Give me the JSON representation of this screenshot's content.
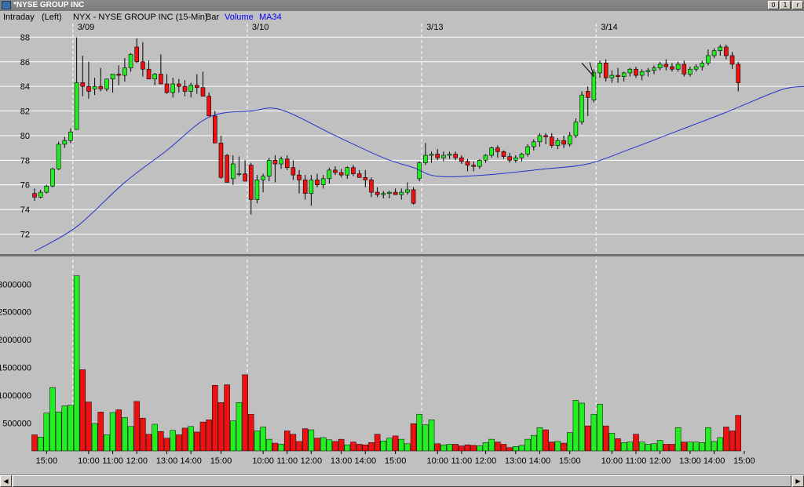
{
  "window": {
    "title": "*NYSE GROUP INC",
    "min_glyph": "0",
    "max_glyph": "1",
    "close_glyph": "r"
  },
  "infobar": {
    "mode": "Intraday",
    "axis_side": "(Left)",
    "symbol_desc": "NYX - NYSE GROUP INC (15-Min)",
    "chart_style": "Bar",
    "volume_label": "Volume",
    "ma_label": "MA34"
  },
  "colors": {
    "up": "#22ee22",
    "down": "#ee1111",
    "ma": "#2233cc",
    "accent": "#0000ff",
    "grid": "#ffffff",
    "divider": "#707070"
  },
  "chart_data": {
    "type": "candlestick",
    "price_axis": {
      "ylim": [
        70.5,
        88.6
      ],
      "ticks": [
        72,
        74,
        76,
        78,
        80,
        82,
        84,
        86,
        88
      ]
    },
    "volume_axis": {
      "ylim": [
        0,
        3300000
      ],
      "ticks": [
        500000,
        1000000,
        1500000,
        2000000,
        2500000,
        3000000
      ]
    },
    "date_labels": [
      {
        "label": "3/09",
        "bar": 7
      },
      {
        "label": "3/10",
        "bar": 36
      },
      {
        "label": "3/13",
        "bar": 65
      },
      {
        "label": "3/14",
        "bar": 94
      }
    ],
    "time_labels": [
      {
        "label": "15:00",
        "bar": 2
      },
      {
        "label": "10:00",
        "bar": 9
      },
      {
        "label": "11:00",
        "bar": 13
      },
      {
        "label": "12:00",
        "bar": 17
      },
      {
        "label": "13:00",
        "bar": 22
      },
      {
        "label": "14:00",
        "bar": 26
      },
      {
        "label": "15:00",
        "bar": 31
      },
      {
        "label": "10:00",
        "bar": 38
      },
      {
        "label": "11:00",
        "bar": 42
      },
      {
        "label": "12:00",
        "bar": 46
      },
      {
        "label": "13:00",
        "bar": 51
      },
      {
        "label": "14:00",
        "bar": 55
      },
      {
        "label": "15:00",
        "bar": 60
      },
      {
        "label": "10:00",
        "bar": 67
      },
      {
        "label": "11:00",
        "bar": 71
      },
      {
        "label": "12:00",
        "bar": 75
      },
      {
        "label": "13:00",
        "bar": 80
      },
      {
        "label": "14:00",
        "bar": 84
      },
      {
        "label": "15:00",
        "bar": 89
      },
      {
        "label": "10:00",
        "bar": 96
      },
      {
        "label": "11:00",
        "bar": 100
      },
      {
        "label": "12:00",
        "bar": 104
      },
      {
        "label": "13:00",
        "bar": 109
      },
      {
        "label": "14:00",
        "bar": 113
      },
      {
        "label": "15:00",
        "bar": 118
      }
    ],
    "ohlcv": [
      [
        75.3,
        75.7,
        74.7,
        75.0,
        290000
      ],
      [
        75.0,
        75.6,
        74.9,
        75.4,
        250000
      ],
      [
        75.4,
        76.0,
        75.3,
        75.9,
        680000
      ],
      [
        75.9,
        77.4,
        75.8,
        77.3,
        1140000
      ],
      [
        77.3,
        79.5,
        77.2,
        79.3,
        700000
      ],
      [
        79.3,
        79.9,
        79.0,
        79.6,
        810000
      ],
      [
        79.6,
        80.6,
        79.4,
        80.3,
        820000
      ],
      [
        80.5,
        88.0,
        82.6,
        84.3,
        3150000
      ],
      [
        84.3,
        86.5,
        83.2,
        84.0,
        1460000
      ],
      [
        84.0,
        86.0,
        83.0,
        83.6,
        880000
      ],
      [
        83.8,
        84.7,
        83.3,
        84.0,
        490000
      ],
      [
        84.0,
        85.5,
        83.6,
        83.8,
        700000
      ],
      [
        83.8,
        84.5,
        83.6,
        84.6,
        290000
      ],
      [
        84.6,
        85.0,
        83.5,
        85.0,
        690000
      ],
      [
        85.0,
        85.7,
        84.1,
        84.9,
        740000
      ],
      [
        84.9,
        86.3,
        84.4,
        85.5,
        600000
      ],
      [
        85.5,
        86.7,
        85.2,
        86.6,
        440000
      ],
      [
        87.2,
        87.9,
        85.9,
        86.0,
        890000
      ],
      [
        86.0,
        87.6,
        84.8,
        85.4,
        590000
      ],
      [
        85.4,
        86.1,
        84.7,
        84.6,
        300000
      ],
      [
        84.6,
        85.1,
        84.1,
        85.0,
        480000
      ],
      [
        85.0,
        86.6,
        84.6,
        84.2,
        350000
      ],
      [
        84.2,
        85.0,
        83.4,
        83.5,
        230000
      ],
      [
        83.5,
        84.7,
        83.1,
        84.2,
        370000
      ],
      [
        84.2,
        84.6,
        83.5,
        84.0,
        290000
      ],
      [
        84.0,
        84.5,
        83.2,
        83.6,
        410000
      ],
      [
        83.6,
        84.3,
        83.1,
        84.1,
        440000
      ],
      [
        84.1,
        85.0,
        83.4,
        83.9,
        340000
      ],
      [
        83.9,
        85.2,
        83.2,
        83.2,
        520000
      ],
      [
        83.2,
        83.5,
        82.6,
        81.6,
        560000
      ],
      [
        81.6,
        82.0,
        79.5,
        79.4,
        1180000
      ],
      [
        79.4,
        80.0,
        76.5,
        76.6,
        870000
      ],
      [
        78.4,
        78.5,
        76.3,
        76.2,
        1190000
      ],
      [
        76.5,
        78.4,
        76.0,
        77.7,
        540000
      ],
      [
        76.9,
        78.3,
        76.7,
        76.9,
        870000
      ],
      [
        76.9,
        78.0,
        76.4,
        76.3,
        1370000
      ],
      [
        77.6,
        77.8,
        73.6,
        74.8,
        660000
      ],
      [
        74.8,
        76.8,
        74.5,
        76.4,
        360000
      ],
      [
        76.4,
        76.9,
        75.4,
        76.7,
        430000
      ],
      [
        76.7,
        78.2,
        76.3,
        78.0,
        210000
      ],
      [
        78.0,
        78.4,
        76.2,
        77.7,
        140000
      ],
      [
        77.7,
        78.3,
        77.3,
        78.1,
        120000
      ],
      [
        78.1,
        78.4,
        77.2,
        77.4,
        360000
      ],
      [
        77.4,
        78.0,
        76.4,
        76.8,
        300000
      ],
      [
        76.8,
        77.2,
        75.3,
        76.4,
        170000
      ],
      [
        76.4,
        76.8,
        74.8,
        75.3,
        400000
      ],
      [
        75.3,
        76.8,
        74.3,
        76.4,
        380000
      ],
      [
        76.4,
        76.9,
        75.8,
        76.0,
        230000
      ],
      [
        76.0,
        76.8,
        75.7,
        76.5,
        240000
      ],
      [
        76.5,
        77.4,
        76.1,
        77.2,
        200000
      ],
      [
        77.2,
        77.5,
        76.8,
        77.0,
        170000
      ],
      [
        77.0,
        77.3,
        76.6,
        76.8,
        210000
      ],
      [
        76.8,
        77.5,
        76.5,
        77.4,
        110000
      ],
      [
        77.4,
        77.6,
        76.7,
        76.9,
        160000
      ],
      [
        76.9,
        77.2,
        76.6,
        76.6,
        120000
      ],
      [
        76.6,
        77.2,
        75.8,
        76.4,
        110000
      ],
      [
        76.4,
        76.6,
        75.0,
        75.4,
        150000
      ],
      [
        75.4,
        75.8,
        75.0,
        75.2,
        300000
      ],
      [
        75.2,
        75.5,
        74.9,
        75.3,
        180000
      ],
      [
        75.3,
        75.5,
        74.9,
        75.4,
        230000
      ],
      [
        75.4,
        75.7,
        75.2,
        75.2,
        270000
      ],
      [
        75.2,
        75.7,
        74.8,
        75.4,
        210000
      ],
      [
        75.4,
        76.2,
        75.2,
        75.6,
        130000
      ],
      [
        75.6,
        75.8,
        74.4,
        74.5,
        490000
      ],
      [
        76.5,
        77.9,
        76.3,
        77.8,
        660000
      ],
      [
        77.8,
        79.4,
        77.6,
        78.4,
        470000
      ],
      [
        78.4,
        78.7,
        77.8,
        78.5,
        560000
      ],
      [
        78.5,
        78.9,
        78.0,
        78.2,
        130000
      ],
      [
        78.2,
        78.7,
        77.9,
        78.4,
        110000
      ],
      [
        78.4,
        78.7,
        78.1,
        78.5,
        120000
      ],
      [
        78.5,
        78.7,
        78.0,
        78.2,
        120000
      ],
      [
        78.2,
        78.4,
        77.7,
        77.9,
        90000
      ],
      [
        77.9,
        78.1,
        77.1,
        77.6,
        110000
      ],
      [
        77.6,
        77.9,
        77.1,
        77.5,
        100000
      ],
      [
        77.5,
        78.1,
        77.3,
        78.0,
        90000
      ],
      [
        78.0,
        78.5,
        77.8,
        78.4,
        150000
      ],
      [
        78.4,
        79.1,
        78.2,
        79.0,
        210000
      ],
      [
        79.0,
        79.2,
        78.2,
        78.7,
        160000
      ],
      [
        78.7,
        78.8,
        78.1,
        78.3,
        120000
      ],
      [
        78.3,
        78.6,
        77.8,
        78.0,
        60000
      ],
      [
        78.0,
        78.4,
        77.8,
        78.2,
        80000
      ],
      [
        78.2,
        78.6,
        77.9,
        78.5,
        100000
      ],
      [
        78.5,
        79.3,
        78.3,
        79.1,
        210000
      ],
      [
        79.1,
        79.7,
        78.8,
        79.5,
        280000
      ],
      [
        79.5,
        80.2,
        79.1,
        80.0,
        420000
      ],
      [
        80.0,
        80.2,
        79.3,
        79.9,
        380000
      ],
      [
        79.9,
        80.2,
        79.0,
        79.2,
        160000
      ],
      [
        79.2,
        79.8,
        78.9,
        79.6,
        170000
      ],
      [
        79.6,
        80.0,
        79.0,
        79.3,
        140000
      ],
      [
        79.3,
        80.3,
        79.1,
        80.0,
        330000
      ],
      [
        80.0,
        81.4,
        79.8,
        81.1,
        910000
      ],
      [
        81.1,
        83.6,
        80.9,
        83.3,
        860000
      ],
      [
        83.6,
        84.0,
        81.6,
        83.1,
        450000
      ],
      [
        82.9,
        85.4,
        82.7,
        85.1,
        660000
      ],
      [
        85.1,
        86.1,
        84.7,
        85.9,
        840000
      ],
      [
        85.9,
        86.2,
        84.4,
        84.7,
        450000
      ],
      [
        84.7,
        85.3,
        84.3,
        84.9,
        320000
      ],
      [
        84.9,
        85.5,
        84.3,
        84.8,
        220000
      ],
      [
        84.8,
        85.2,
        84.4,
        85.1,
        150000
      ],
      [
        85.1,
        85.5,
        84.8,
        85.4,
        160000
      ],
      [
        85.4,
        85.6,
        84.7,
        84.9,
        300000
      ],
      [
        84.9,
        85.4,
        84.5,
        85.2,
        160000
      ],
      [
        85.2,
        85.5,
        84.8,
        85.3,
        120000
      ],
      [
        85.3,
        85.7,
        85.0,
        85.5,
        130000
      ],
      [
        85.5,
        86.0,
        85.3,
        85.8,
        190000
      ],
      [
        85.8,
        86.2,
        85.3,
        85.6,
        120000
      ],
      [
        85.6,
        85.9,
        85.2,
        85.4,
        120000
      ],
      [
        85.4,
        86.0,
        85.2,
        85.8,
        420000
      ],
      [
        85.8,
        86.1,
        84.8,
        85.0,
        160000
      ],
      [
        85.0,
        85.6,
        84.8,
        85.4,
        160000
      ],
      [
        85.4,
        85.8,
        85.2,
        85.6,
        160000
      ],
      [
        85.6,
        86.1,
        85.3,
        85.9,
        150000
      ],
      [
        85.9,
        87.0,
        85.7,
        86.5,
        420000
      ],
      [
        86.5,
        87.1,
        86.3,
        86.9,
        170000
      ],
      [
        86.9,
        87.4,
        86.5,
        87.2,
        240000
      ],
      [
        87.2,
        87.4,
        86.2,
        86.5,
        430000
      ],
      [
        86.5,
        86.8,
        85.4,
        85.8,
        360000
      ],
      [
        85.8,
        86.0,
        83.6,
        84.3,
        640000
      ]
    ],
    "ma34": [
      [
        0,
        70.6
      ],
      [
        7,
        72.6
      ],
      [
        15,
        76.2
      ],
      [
        22,
        78.8
      ],
      [
        29,
        81.5
      ],
      [
        36,
        82.0
      ],
      [
        41,
        82.1
      ],
      [
        50,
        80.0
      ],
      [
        58,
        78.2
      ],
      [
        63,
        77.4
      ],
      [
        67,
        76.7
      ],
      [
        75,
        76.8
      ],
      [
        85,
        77.3
      ],
      [
        92,
        77.7
      ],
      [
        99,
        78.9
      ],
      [
        107,
        80.4
      ],
      [
        115,
        81.9
      ],
      [
        124,
        83.7
      ],
      [
        128,
        84.0
      ]
    ],
    "annotation": {
      "type": "arrow",
      "from": [
        91,
        85.9
      ],
      "to": [
        93,
        84.8
      ]
    }
  }
}
